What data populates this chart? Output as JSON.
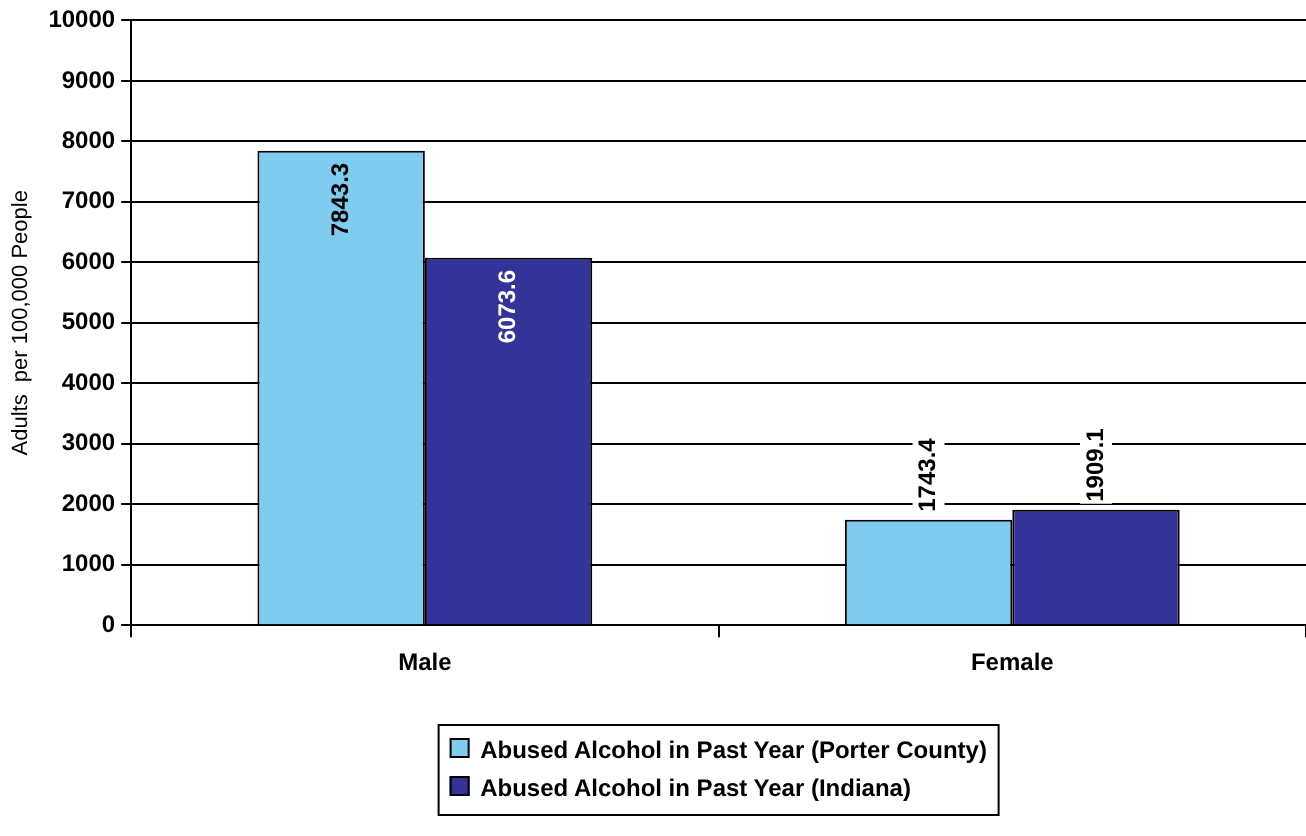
{
  "chart_data": {
    "type": "bar",
    "ylabel": "Adults  per 100,000 People",
    "categories": [
      "Male",
      "Female"
    ],
    "series": [
      {
        "name": "Abused Alcohol in Past Year (Porter County)",
        "color": "#80ccf0",
        "values": [
          7843.3,
          1743.4
        ]
      },
      {
        "name": "Abused Alcohol in Past Year (Indiana)",
        "color": "#333399",
        "values": [
          6073.6,
          1909.1
        ]
      }
    ],
    "ylim": [
      0,
      10000
    ],
    "yticks": [
      0,
      1000,
      2000,
      3000,
      4000,
      5000,
      6000,
      7000,
      8000,
      9000,
      10000
    ],
    "grid": "y",
    "legend": "bottom",
    "data_labels": true
  }
}
